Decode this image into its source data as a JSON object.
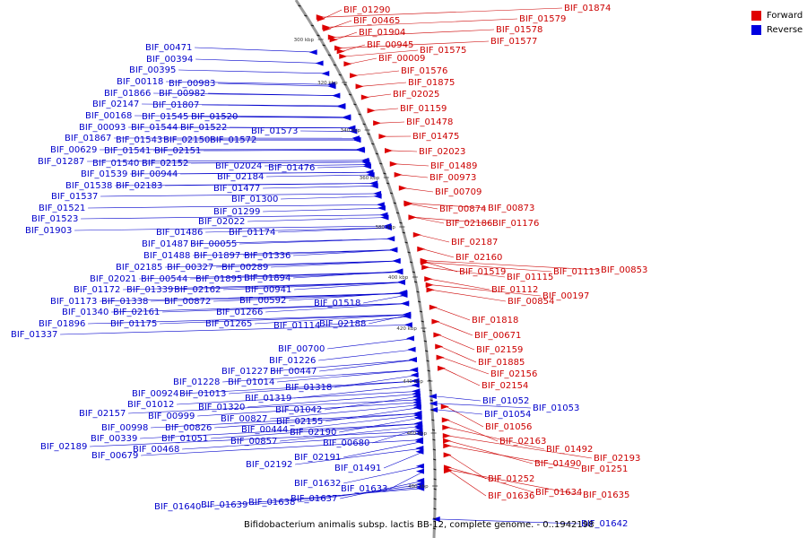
{
  "legend": [
    {
      "label": "Forward",
      "color": "#e00000"
    },
    {
      "label": "Reverse",
      "color": "#0000e0"
    }
  ],
  "caption": "Bifidobacterium animalis subsp. lactis BB-12, complete genome. - 0..1942198",
  "ruler_ticks": [
    "300 kbp",
    "320 kbp",
    "340 kbp",
    "360 kbp",
    "380 kbp",
    "400 kbp",
    "420 kbp",
    "440 kbp",
    "460 kbp",
    "480 kbp"
  ],
  "colors": {
    "forward": "#cc0000",
    "reverse": "#0000cc",
    "backbone": "#999999"
  },
  "forward_labels": [
    "BIF_01290",
    "BIF_00465",
    "BIF_01904",
    "BIF_00945",
    "BIF_00009",
    "BIF_01575",
    "BIF_01576",
    "BIF_01875",
    "BIF_02025",
    "BIF_01159",
    "BIF_01478",
    "BIF_01475",
    "BIF_02023",
    "BIF_01489",
    "BIF_00973",
    "BIF_00709",
    "BIF_00874",
    "BIF_00873",
    "BIF_02186",
    "BIF_01176",
    "BIF_02187",
    "BIF_02160",
    "BIF_01519",
    "BIF_01115",
    "BIF_01113",
    "BIF_00853",
    "BIF_01112",
    "BIF_00854",
    "BIF_00197",
    "BIF_01818",
    "BIF_00671",
    "BIF_02159",
    "BIF_01885",
    "BIF_02156",
    "BIF_02154",
    "BIF_01056",
    "BIF_02163",
    "BIF_01492",
    "BIF_02193",
    "BIF_01490",
    "BIF_01251",
    "BIF_01252",
    "BIF_01636",
    "BIF_01634",
    "BIF_01635",
    "BIF_01874",
    "BIF_01579",
    "BIF_01578",
    "BIF_01577"
  ],
  "reverse_labels": [
    "BIF_00471",
    "BIF_00394",
    "BIF_00395",
    "BIF_00118",
    "BIF_00983",
    "BIF_01866",
    "BIF_00982",
    "BIF_02147",
    "BIF_01807",
    "BIF_00168",
    "BIF_01545",
    "BIF_01520",
    "BIF_00093",
    "BIF_01544",
    "BIF_01522",
    "BIF_01867",
    "BIF_01543",
    "BIF_02150",
    "BIF_01572",
    "BIF_01573",
    "BIF_00629",
    "BIF_01541",
    "BIF_02151",
    "BIF_01287",
    "BIF_01540",
    "BIF_02152",
    "BIF_02024",
    "BIF_01476",
    "BIF_01539",
    "BIF_00944",
    "BIF_02184",
    "BIF_01538",
    "BIF_02183",
    "BIF_01477",
    "BIF_01537",
    "BIF_01300",
    "BIF_01521",
    "BIF_01299",
    "BIF_01523",
    "BIF_02022",
    "BIF_01903",
    "BIF_01486",
    "BIF_01174",
    "BIF_01487",
    "BIF_00055",
    "BIF_01488",
    "BIF_01897",
    "BIF_01336",
    "BIF_02185",
    "BIF_00327",
    "BIF_00289",
    "BIF_02021",
    "BIF_00544",
    "BIF_01895",
    "BIF_01894",
    "BIF_01172",
    "BIF_01339",
    "BIF_02162",
    "BIF_00941",
    "BIF_01173",
    "BIF_01338",
    "BIF_00872",
    "BIF_00592",
    "BIF_01518",
    "BIF_01340",
    "BIF_02161",
    "BIF_01266",
    "BIF_01896",
    "BIF_01175",
    "BIF_01265",
    "BIF_01114",
    "BIF_02188",
    "BIF_01337",
    "BIF_00700",
    "BIF_01226",
    "BIF_01227",
    "BIF_00447",
    "BIF_01228",
    "BIF_01014",
    "BIF_01318",
    "BIF_00924",
    "BIF_01013",
    "BIF_01319",
    "BIF_01012",
    "BIF_01320",
    "BIF_01042",
    "BIF_02157",
    "BIF_00999",
    "BIF_00827",
    "BIF_02155",
    "BIF_00998",
    "BIF_00826",
    "BIF_00444",
    "BIF_02190",
    "BIF_00339",
    "BIF_01051",
    "BIF_00857",
    "BIF_00680",
    "BIF_02189",
    "BIF_00468",
    "BIF_00679",
    "BIF_02191",
    "BIF_02192",
    "BIF_01491",
    "BIF_01632",
    "BIF_01633",
    "BIF_01637",
    "BIF_01638",
    "BIF_01640",
    "BIF_01639",
    "BIF_01052",
    "BIF_01054",
    "BIF_01053",
    "BIF_01642"
  ]
}
